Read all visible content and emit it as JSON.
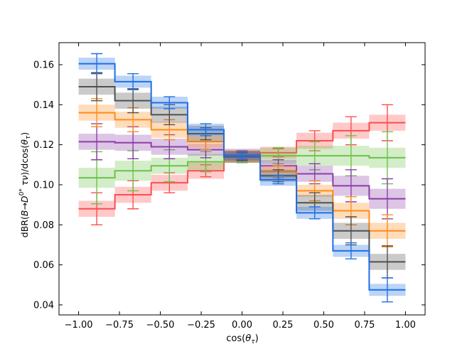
{
  "chart_data": {
    "type": "step",
    "title": "",
    "xlabel": "cos(θτ)",
    "ylabel": "dBR(B→D0* τν)/dcos(θτ)",
    "xlim": [
      -1.12,
      1.12
    ],
    "ylim": [
      0.035,
      0.171
    ],
    "x_ticks": [
      "−1.00",
      "−0.75",
      "−0.50",
      "−0.25",
      "0.00",
      "0.25",
      "0.50",
      "0.75",
      "1.00"
    ],
    "y_ticks": [
      "0.04",
      "0.06",
      "0.08",
      "0.10",
      "0.12",
      "0.14",
      "0.16"
    ],
    "grid": false,
    "legend": "none",
    "bin_edges": [
      -1.0,
      -0.778,
      -0.556,
      -0.333,
      -0.111,
      0.111,
      0.333,
      0.556,
      0.778,
      1.0
    ],
    "series": [
      {
        "name": "red",
        "color": "#ff4d4d",
        "values": [
          0.088,
          0.095,
          0.101,
          0.107,
          0.114,
          0.116,
          0.122,
          0.127,
          0.131
        ],
        "band": [
          0.004,
          0.004,
          0.004,
          0.004,
          0.003,
          0.003,
          0.004,
          0.004,
          0.004
        ],
        "err": [
          0.008,
          0.007,
          0.005,
          0.003,
          0.002,
          0.002,
          0.005,
          0.007,
          0.009
        ]
      },
      {
        "name": "green",
        "color": "#6cc24a",
        "values": [
          0.1035,
          0.107,
          0.1095,
          0.1115,
          0.114,
          0.1145,
          0.1145,
          0.1145,
          0.1135
        ],
        "band": [
          0.005,
          0.005,
          0.004,
          0.004,
          0.003,
          0.004,
          0.005,
          0.005,
          0.005
        ],
        "err": [
          0.013,
          0.01,
          0.008,
          0.005,
          0.003,
          0.004,
          0.007,
          0.01,
          0.013
        ]
      },
      {
        "name": "purple",
        "color": "#8b3fa8",
        "values": [
          0.1215,
          0.121,
          0.119,
          0.1175,
          0.115,
          0.1095,
          0.1055,
          0.0995,
          0.093
        ],
        "band": [
          0.004,
          0.004,
          0.004,
          0.003,
          0.003,
          0.003,
          0.004,
          0.005,
          0.005
        ],
        "err": [
          0.009,
          0.008,
          0.006,
          0.004,
          0.002,
          0.003,
          0.005,
          0.008,
          0.01
        ]
      },
      {
        "name": "orange",
        "color": "#ff8c1a",
        "values": [
          0.136,
          0.1325,
          0.1275,
          0.1215,
          0.1145,
          0.1065,
          0.097,
          0.087,
          0.077
        ],
        "band": [
          0.004,
          0.004,
          0.004,
          0.003,
          0.003,
          0.003,
          0.003,
          0.004,
          0.004
        ],
        "err": [
          0.007,
          0.006,
          0.005,
          0.004,
          0.002,
          0.003,
          0.005,
          0.007,
          0.008
        ]
      },
      {
        "name": "gray",
        "color": "#505050",
        "values": [
          0.149,
          0.142,
          0.135,
          0.1255,
          0.114,
          0.1045,
          0.091,
          0.077,
          0.0615
        ],
        "band": [
          0.004,
          0.004,
          0.004,
          0.004,
          0.003,
          0.003,
          0.004,
          0.004,
          0.004
        ],
        "err": [
          0.007,
          0.006,
          0.005,
          0.003,
          0.002,
          0.003,
          0.005,
          0.007,
          0.008
        ]
      },
      {
        "name": "blue",
        "color": "#1f6fe5",
        "values": [
          0.1605,
          0.1515,
          0.141,
          0.1275,
          0.1145,
          0.1025,
          0.086,
          0.067,
          0.0475
        ],
        "band": [
          0.003,
          0.003,
          0.003,
          0.003,
          0.002,
          0.003,
          0.003,
          0.003,
          0.003
        ],
        "err": [
          0.005,
          0.004,
          0.003,
          0.003,
          0.002,
          0.002,
          0.003,
          0.004,
          0.006
        ]
      }
    ]
  }
}
